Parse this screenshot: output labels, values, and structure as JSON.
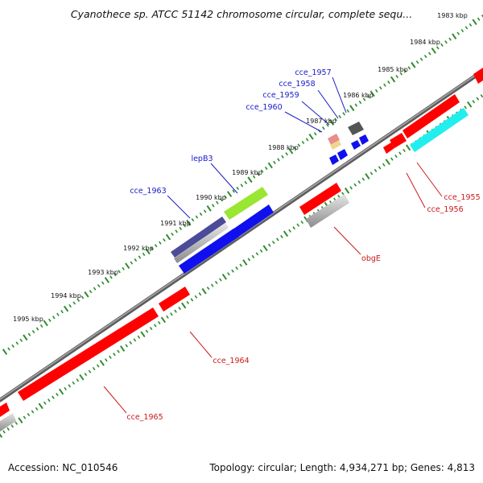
{
  "title": "Cyanothece sp. ATCC 51142 chromosome circular, complete sequ...",
  "accession": "Accession: NC_010546",
  "topology": "Topology: circular; Length: 4,934,271 bp; Genes: 4,813",
  "colors": {
    "backbone": "#808080",
    "tick": "#2e8b2e",
    "plus_label": "#1a1acc",
    "minus_label": "#cc1a1a",
    "feature_red": "#ff0000",
    "feature_gray": "#bdbdbd",
    "feature_blue": "#1010ee",
    "feature_navy": "#4b4b99",
    "feature_lime": "#99e633",
    "feature_cyan": "#22eeee"
  },
  "kbp_ticks": [
    {
      "label": "1983 kbp"
    },
    {
      "label": "1984 kbp"
    },
    {
      "label": "1985 kbp"
    },
    {
      "label": "1986 kbp"
    },
    {
      "label": "1987 kbp"
    },
    {
      "label": "1988 kbp"
    },
    {
      "label": "1989 kbp"
    },
    {
      "label": "1990 kbp"
    },
    {
      "label": "1991 kbp"
    },
    {
      "label": "1992 kbp"
    },
    {
      "label": "1993 kbp"
    },
    {
      "label": "1994 kbp"
    },
    {
      "label": "1995 kbp"
    }
  ],
  "gene_labels": [
    {
      "name": "cce_1957",
      "strand": "plus"
    },
    {
      "name": "cce_1958",
      "strand": "plus"
    },
    {
      "name": "cce_1959",
      "strand": "plus"
    },
    {
      "name": "cce_1960",
      "strand": "plus"
    },
    {
      "name": "lepB3",
      "strand": "plus"
    },
    {
      "name": "cce_1963",
      "strand": "plus"
    },
    {
      "name": "cce_1955",
      "strand": "minus"
    },
    {
      "name": "cce_1956",
      "strand": "minus"
    },
    {
      "name": "obgE",
      "strand": "minus"
    },
    {
      "name": "cce_1964",
      "strand": "minus"
    },
    {
      "name": "cce_1965",
      "strand": "minus"
    }
  ]
}
